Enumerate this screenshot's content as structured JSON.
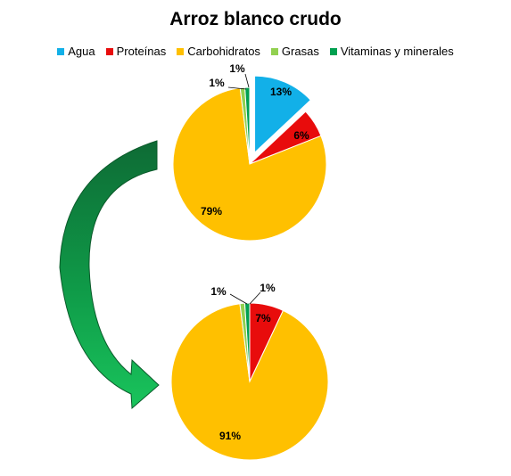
{
  "title": "Arroz blanco crudo",
  "legend": [
    {
      "name": "Agua",
      "color": "#12B0E8"
    },
    {
      "name": "Proteínas",
      "color": "#E80C0C"
    },
    {
      "name": "Carbohidratos",
      "color": "#FFC000"
    },
    {
      "name": "Grasas",
      "color": "#92D050"
    },
    {
      "name": "Vitaminas y minerales",
      "color": "#00A050"
    }
  ],
  "chart_data": [
    {
      "type": "pie",
      "title": "Arroz blanco crudo",
      "slices": [
        {
          "name": "Agua",
          "value": 13,
          "label": "13%",
          "color": "#12B0E8"
        },
        {
          "name": "Proteínas",
          "value": 6,
          "label": "6%",
          "color": "#E80C0C"
        },
        {
          "name": "Carbohidratos",
          "value": 79,
          "label": "79%",
          "color": "#FFC000"
        },
        {
          "name": "Grasas",
          "value": 1,
          "label": "1%",
          "color": "#92D050"
        },
        {
          "name": "Vitaminas y minerales",
          "value": 1,
          "label": "1%",
          "color": "#00A050"
        }
      ],
      "exploded": "Agua",
      "legend_position": "top"
    },
    {
      "type": "pie",
      "slices": [
        {
          "name": "Proteínas",
          "value": 7,
          "label": "7%",
          "color": "#E80C0C"
        },
        {
          "name": "Carbohidratos",
          "value": 91,
          "label": "91%",
          "color": "#FFC000"
        },
        {
          "name": "Grasas",
          "value": 1,
          "label": "1%",
          "color": "#92D050"
        },
        {
          "name": "Vitaminas y minerales",
          "value": 1,
          "label": "1%",
          "color": "#00A050"
        }
      ]
    }
  ]
}
